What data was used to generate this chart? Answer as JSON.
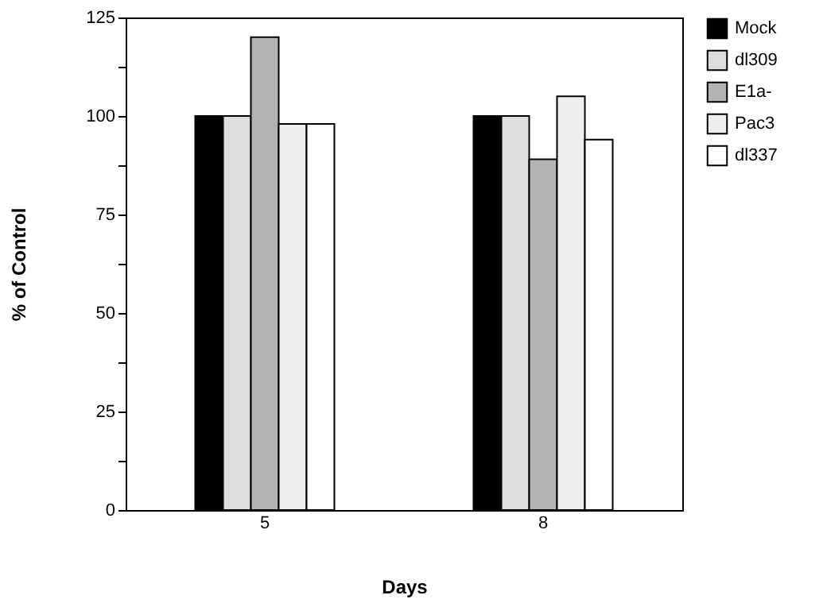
{
  "chart_data": {
    "type": "bar",
    "xlabel": "Days",
    "ylabel": "% of Control",
    "categories": [
      "5",
      "8"
    ],
    "series": [
      {
        "name": "Mock",
        "color": "#000000",
        "values": [
          100,
          100
        ]
      },
      {
        "name": "dl309",
        "color": "#dddddd",
        "values": [
          100,
          100
        ]
      },
      {
        "name": "E1a-",
        "color": "#b3b3b3",
        "values": [
          120,
          89
        ]
      },
      {
        "name": "Pac3",
        "color": "#eeeeee",
        "values": [
          98,
          105
        ]
      },
      {
        "name": "dl337",
        "color": "#ffffff",
        "values": [
          98,
          94
        ]
      }
    ],
    "ylim": [
      0,
      125
    ],
    "yticks": [
      0,
      {
        "value": 12.5,
        "label": null
      },
      25,
      {
        "value": 37.5,
        "label": null
      },
      50,
      {
        "value": 62.5,
        "label": null
      },
      75,
      {
        "value": 87.5,
        "label": null
      },
      100,
      {
        "value": 112.5,
        "label": null
      },
      125
    ],
    "grid": false,
    "legend": "right"
  }
}
